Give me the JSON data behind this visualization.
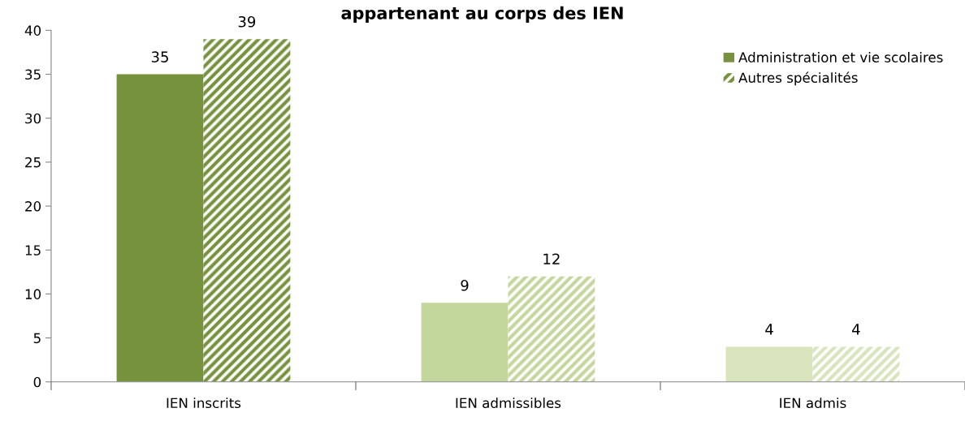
{
  "chart_data": {
    "type": "bar",
    "title": "appartenant au corps des IEN",
    "categories": [
      "IEN inscrits",
      "IEN admissibles",
      "IEN admis"
    ],
    "series": [
      {
        "name": "Administration et vie scolaires",
        "color": "#76923c",
        "colors": [
          "#76923c",
          "#c3d69b",
          "#d7e4bc"
        ],
        "values": [
          35,
          9,
          4
        ]
      },
      {
        "name": "Autres spécialités",
        "color": "#76923c",
        "colors": [
          "#76923c",
          "#c3d69b",
          "#d7e4bc"
        ],
        "values": [
          39,
          12,
          4
        ]
      }
    ],
    "ylim": [
      0,
      40
    ],
    "yticks": [
      0,
      5,
      10,
      15,
      20,
      25,
      30,
      35,
      40
    ],
    "data_labels": true,
    "grid": false,
    "legend": "top right"
  }
}
